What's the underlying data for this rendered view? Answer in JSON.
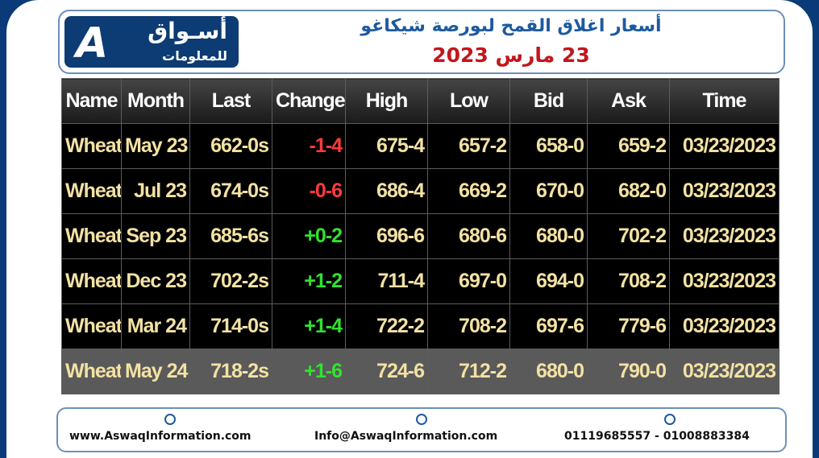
{
  "header": {
    "logo_title": "أسـواق",
    "logo_subtitle": "للمعلومات",
    "title": "أسعار اغلاق القمح لبورصة شيكاغو",
    "date": "23 مارس 2023"
  },
  "table": {
    "columns": [
      "Name",
      "Month",
      "Last",
      "Change",
      "High",
      "Low",
      "Bid",
      "Ask",
      "Time"
    ],
    "rows": [
      [
        "Wheat",
        "May 23",
        "662-0s",
        "-1-4",
        "675-4",
        "657-2",
        "658-0",
        "659-2",
        "03/23/2023"
      ],
      [
        "Wheat",
        "Jul 23",
        "674-0s",
        "-0-6",
        "686-4",
        "669-2",
        "670-0",
        "682-0",
        "03/23/2023"
      ],
      [
        "Wheat",
        "Sep 23",
        "685-6s",
        "+0-2",
        "696-6",
        "680-6",
        "680-0",
        "702-2",
        "03/23/2023"
      ],
      [
        "Wheat",
        "Dec 23",
        "702-2s",
        "+1-2",
        "711-4",
        "697-0",
        "694-0",
        "708-2",
        "03/23/2023"
      ],
      [
        "Wheat",
        "Mar 24",
        "714-0s",
        "+1-4",
        "722-2",
        "708-2",
        "697-6",
        "779-6",
        "03/23/2023"
      ],
      [
        "Wheat",
        "May 24",
        "718-2s",
        "+1-6",
        "724-6",
        "712-2",
        "680-0",
        "790-0",
        "03/23/2023"
      ]
    ]
  },
  "footer": {
    "website": "www.AswaqInformation.com",
    "email": "Info@AswaqInformation.com",
    "phone": "01119685557 - 01008883384"
  }
}
